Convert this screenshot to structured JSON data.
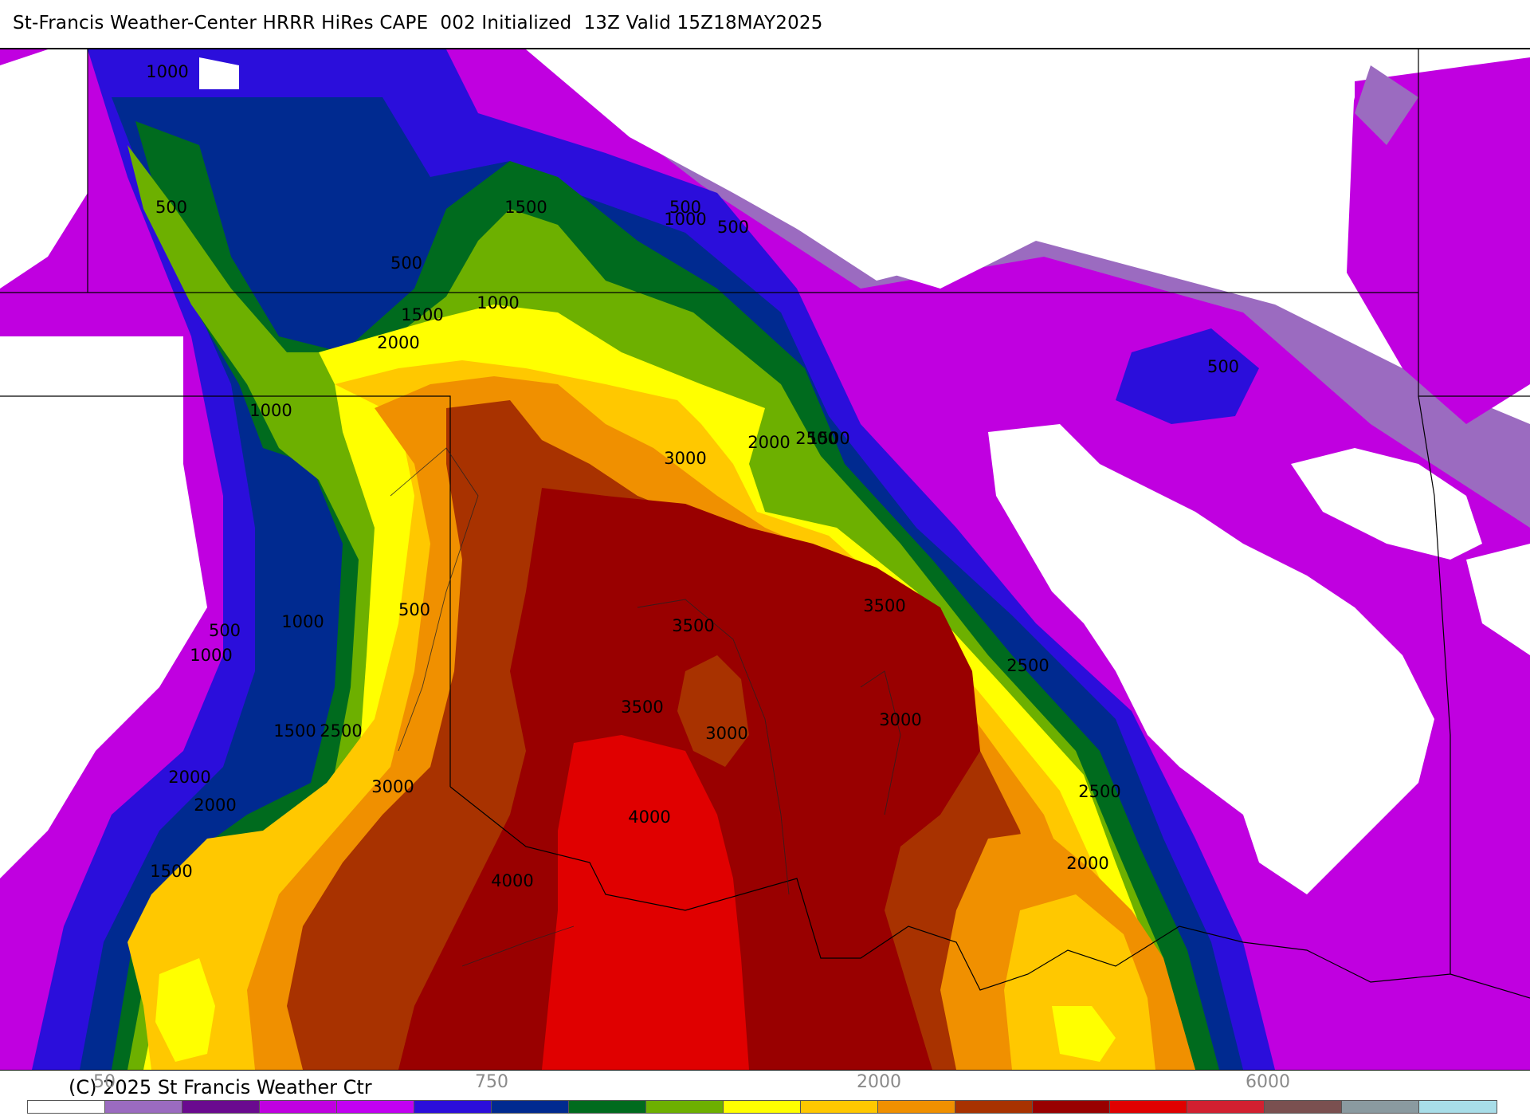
{
  "title": "St-Francis Weather-Center HRRR HiRes CAPE  002 Initialized  13Z Valid 15Z18MAY2025",
  "copyright": "(C) 2025 St Francis Weather Ctr",
  "colors": {
    "50": "#ffffff",
    "100": "#9b6bc0",
    "250": "#6a0a8f",
    "500": "#c000e0",
    "750": "#c200f2",
    "1000": "#2b0edb",
    "1250": "#002a90",
    "1500": "#006b1e",
    "1750": "#6db000",
    "2000": "#ffff00",
    "2250": "#ffc800",
    "2500": "#f09000",
    "3000": "#a83200",
    "3500": "#990000",
    "4000": "#e00000",
    "4500": "#d22030",
    "5000": "#7a5050",
    "5500": "#8a9aa0",
    "6000": "#a8dde8"
  },
  "colorbar": {
    "swatches": [
      "#ffffff",
      "#9b6bc0",
      "#6a0a8f",
      "#c000e0",
      "#c200f2",
      "#2b0edb",
      "#002a90",
      "#006b1e",
      "#6db000",
      "#ffff00",
      "#ffc800",
      "#f09000",
      "#a83200",
      "#990000",
      "#e00000",
      "#d22030",
      "#7a5050",
      "#8a9aa0",
      "#a8dde8"
    ],
    "tick_labels": [
      "50",
      "750",
      "2000",
      "6000"
    ]
  },
  "contour_labels": [
    "1000",
    "500",
    "500",
    "1000",
    "1500",
    "500",
    "500",
    "1000",
    "500",
    "1500",
    "2000",
    "1000",
    "500",
    "1500",
    "2000",
    "2500",
    "3000",
    "1000",
    "500",
    "1000",
    "3500",
    "3500",
    "2500",
    "1500",
    "2500",
    "3500",
    "3000",
    "3000",
    "2000",
    "2000",
    "3000",
    "4000",
    "2500",
    "1500",
    "4000",
    "2000"
  ]
}
